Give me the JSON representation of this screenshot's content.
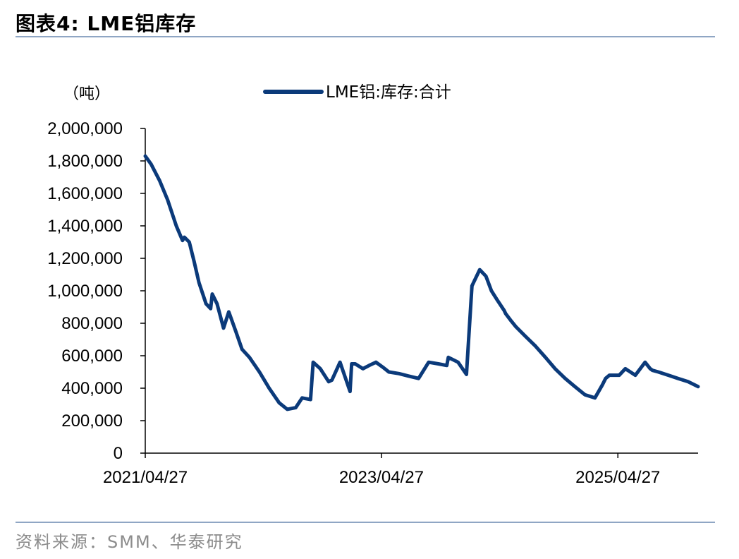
{
  "header": {
    "title": "图表4:   LME铝库存"
  },
  "footer": {
    "source": "资料来源：SMM、华泰研究"
  },
  "colors": {
    "series": "#0b3a7a",
    "rule": "#8fa6c4",
    "source_text": "#8c8c8c"
  },
  "chart_data": {
    "type": "line",
    "title": "",
    "ylabel": "（吨）",
    "xlabel": "",
    "ylim": [
      0,
      2000000
    ],
    "yticks": [
      0,
      200000,
      400000,
      600000,
      800000,
      1000000,
      1200000,
      1400000,
      1600000,
      1800000,
      2000000
    ],
    "ytick_labels": [
      "0",
      "200,000",
      "400,000",
      "600,000",
      "800,000",
      "1,000,000",
      "1,200,000",
      "1,400,000",
      "1,600,000",
      "1,800,000",
      "2,000,000"
    ],
    "xlim": [
      "2021-04-27",
      "2025-12-31"
    ],
    "xticks": [
      "2021-04-27",
      "2023-04-27",
      "2025-04-27"
    ],
    "xtick_labels": [
      "2021/04/27",
      "2023/04/27",
      "2025/04/27"
    ],
    "legend_position": "top-center",
    "grid": false,
    "series": [
      {
        "name": "LME铝:库存:合计",
        "x": [
          "2021-04-27",
          "2021-05-15",
          "2021-06-10",
          "2021-07-05",
          "2021-08-01",
          "2021-08-20",
          "2021-08-26",
          "2021-09-10",
          "2021-09-25",
          "2021-10-10",
          "2021-11-01",
          "2021-11-15",
          "2021-11-20",
          "2021-12-05",
          "2021-12-25",
          "2022-01-10",
          "2022-01-12",
          "2022-02-01",
          "2022-02-20",
          "2022-03-15",
          "2022-04-15",
          "2022-05-15",
          "2022-06-15",
          "2022-07-10",
          "2022-08-05",
          "2022-08-25",
          "2022-09-20",
          "2022-09-28",
          "2022-10-20",
          "2022-11-15",
          "2022-11-25",
          "2022-12-20",
          "2023-01-20",
          "2023-01-25",
          "2023-02-05",
          "2023-03-01",
          "2023-03-20",
          "2023-04-10",
          "2023-05-01",
          "2023-05-20",
          "2023-06-20",
          "2023-07-20",
          "2023-08-20",
          "2023-09-20",
          "2023-10-20",
          "2023-11-15",
          "2023-11-20",
          "2023-12-20",
          "2024-01-15",
          "2024-02-01",
          "2024-02-25",
          "2024-03-15",
          "2024-04-01",
          "2024-04-20",
          "2024-05-10",
          "2024-05-15",
          "2024-05-30",
          "2024-06-15",
          "2024-07-15",
          "2024-08-15",
          "2024-09-15",
          "2024-10-15",
          "2024-11-15",
          "2024-12-15",
          "2025-01-15",
          "2025-02-15",
          "2025-03-10",
          "2025-03-20",
          "2025-04-01",
          "2025-05-01",
          "2025-05-20",
          "2025-06-20",
          "2025-07-20",
          "2025-08-05",
          "2025-08-12",
          "2025-08-30",
          "2025-09-30",
          "2025-10-30",
          "2025-11-30",
          "2025-12-31"
        ],
        "y": [
          1830000,
          1780000,
          1680000,
          1560000,
          1400000,
          1310000,
          1330000,
          1300000,
          1180000,
          1050000,
          920000,
          890000,
          980000,
          920000,
          770000,
          870000,
          860000,
          750000,
          640000,
          590000,
          500000,
          400000,
          310000,
          270000,
          280000,
          340000,
          330000,
          560000,
          520000,
          440000,
          450000,
          560000,
          380000,
          550000,
          550000,
          520000,
          540000,
          560000,
          530000,
          500000,
          490000,
          475000,
          460000,
          560000,
          550000,
          540000,
          590000,
          560000,
          485000,
          1030000,
          1130000,
          1090000,
          1000000,
          940000,
          880000,
          860000,
          820000,
          780000,
          720000,
          660000,
          590000,
          520000,
          460000,
          410000,
          360000,
          340000,
          420000,
          460000,
          480000,
          480000,
          520000,
          480000,
          560000,
          520000,
          510000,
          500000,
          480000,
          460000,
          440000,
          410000
        ]
      }
    ]
  }
}
